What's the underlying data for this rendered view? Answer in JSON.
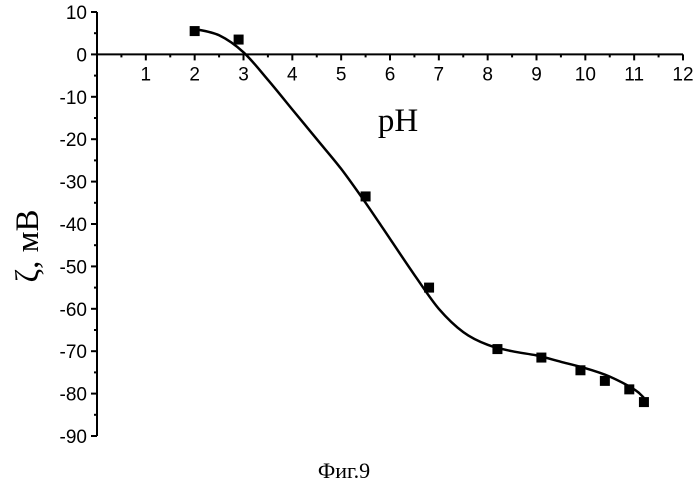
{
  "chart_data": {
    "type": "scatter",
    "xlabel": "pH",
    "ylabel": "ζ, мВ",
    "caption": "Фиг.9",
    "xlim": [
      0,
      12
    ],
    "ylim": [
      -90,
      10
    ],
    "x_ticks": [
      1,
      2,
      3,
      4,
      5,
      6,
      7,
      8,
      9,
      10,
      11,
      12
    ],
    "y_ticks": [
      10,
      0,
      -10,
      -20,
      -30,
      -40,
      -50,
      -60,
      -70,
      -80,
      -90
    ],
    "grid": false,
    "series": [
      {
        "marker": "square",
        "x": [
          2.0,
          2.9,
          5.5,
          6.8,
          8.2,
          9.1,
          9.9,
          10.4,
          10.9,
          11.2
        ],
        "y": [
          5.5,
          3.5,
          -33.5,
          -55,
          -69.5,
          -71.5,
          -74.5,
          -77,
          -79,
          -82
        ]
      }
    ],
    "fit_curve": {
      "x": [
        2.0,
        2.5,
        3.0,
        3.5,
        4.0,
        4.5,
        5.0,
        5.5,
        6.0,
        6.5,
        7.0,
        7.5,
        8.0,
        8.5,
        9.0,
        9.5,
        10.0,
        10.5,
        11.0,
        11.2
      ],
      "y": [
        6,
        4.5,
        0.5,
        -6,
        -13,
        -20,
        -27,
        -35,
        -43.5,
        -52,
        -60,
        -65.5,
        -68.5,
        -70,
        -71,
        -72.5,
        -74,
        -76,
        -79,
        -81
      ]
    }
  }
}
